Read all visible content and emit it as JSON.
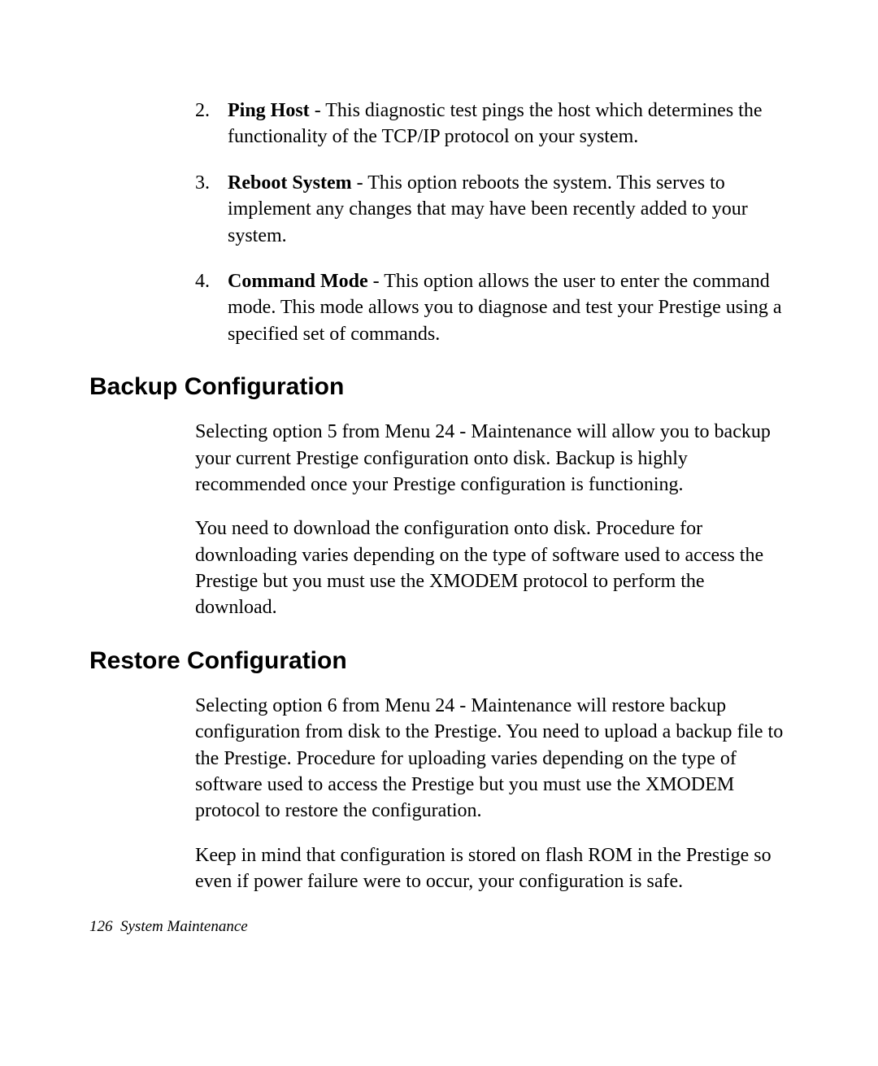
{
  "list": {
    "items": [
      {
        "number": "2.",
        "bold": "Ping Host",
        "text": " - This diagnostic test pings the host which determines the functionality of the TCP/IP protocol on your system."
      },
      {
        "number": "3.",
        "bold": "Reboot System",
        "text": " - This option reboots the system. This serves to implement any changes that may have been recently added to your system."
      },
      {
        "number": "4.",
        "bold": "Command Mode",
        "text": " - This option allows the user to enter the command mode. This mode allows you to diagnose and test your Prestige using a specified set of commands."
      }
    ]
  },
  "sections": {
    "backup": {
      "heading": "Backup Configuration",
      "para1": "Selecting option 5 from Menu 24 - Maintenance will allow you to backup your current Prestige configuration onto disk. Backup is highly recommended once your Prestige configuration is functioning.",
      "para2": "You need to download the configuration onto disk. Procedure for downloading varies depending on the type of software used to access the Prestige but you must use the XMODEM protocol to perform the download."
    },
    "restore": {
      "heading": "Restore Configuration",
      "para1": "Selecting option 6 from Menu 24 - Maintenance will restore backup configuration from disk to the Prestige. You need to upload a backup file to the Prestige. Procedure for uploading varies depending on the type of software used to access the Prestige but you must use the XMODEM protocol to restore the configuration.",
      "para2": "Keep in mind that configuration is stored on flash ROM in the Prestige so even if power failure were to occur, your configuration is safe."
    }
  },
  "footer": {
    "page_number": "126",
    "chapter": "System Maintenance"
  },
  "styling": {
    "background_color": "#ffffff",
    "text_color": "#000000",
    "body_fontsize": 24,
    "heading_fontsize": 30,
    "footer_fontsize": 19,
    "body_fontfamily": "Times New Roman",
    "heading_fontfamily": "Arial"
  }
}
